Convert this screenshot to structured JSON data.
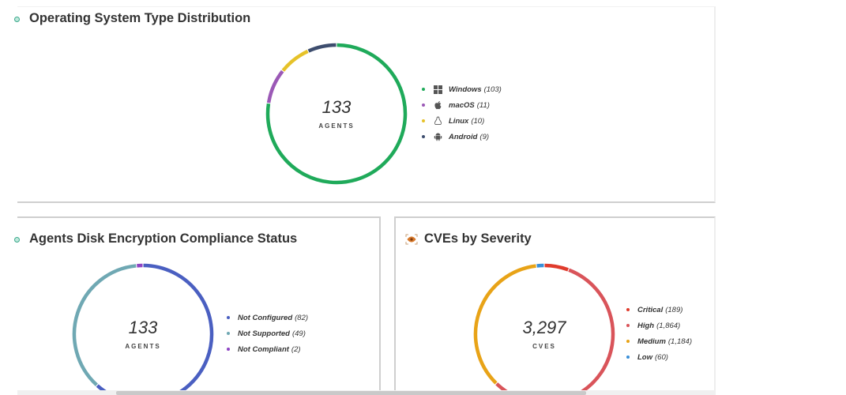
{
  "panels": {
    "os": {
      "title": "Operating System Type Distribution",
      "title_icon": "dot-icon",
      "center_value": "133",
      "center_label": "AGENTS",
      "legend": [
        {
          "label": "Windows",
          "count": "(103)",
          "color": "#1faa5a",
          "icon": "windows-icon"
        },
        {
          "label": "macOS",
          "count": "(11)",
          "color": "#9b59b6",
          "icon": "apple-icon"
        },
        {
          "label": "Linux",
          "count": "(10)",
          "color": "#e6c229",
          "icon": "linux-icon"
        },
        {
          "label": "Android",
          "count": "(9)",
          "color": "#3d4d6e",
          "icon": "android-icon"
        }
      ]
    },
    "disk": {
      "title": "Agents Disk Encryption Compliance Status",
      "title_icon": "dot-icon",
      "center_value": "133",
      "center_label": "AGENTS",
      "legend": [
        {
          "label": "Not Configured",
          "count": "(82)",
          "color": "#4a5fc1"
        },
        {
          "label": "Not Supported",
          "count": "(49)",
          "color": "#6fa8b3"
        },
        {
          "label": "Not Compliant",
          "count": "(2)",
          "color": "#8e44c4"
        }
      ]
    },
    "cve": {
      "title": "CVEs by Severity",
      "title_icon": "eye-scan-icon",
      "center_value": "3,297",
      "center_label": "CVES",
      "legend": [
        {
          "label": "Critical",
          "count": "(189)",
          "color": "#e03b2c"
        },
        {
          "label": "High",
          "count": "(1,864)",
          "color": "#d9545a"
        },
        {
          "label": "Medium",
          "count": "(1,184)",
          "color": "#e8a317"
        },
        {
          "label": "Low",
          "count": "(60)",
          "color": "#3a8fd8"
        }
      ]
    }
  },
  "chart_data": [
    {
      "type": "pie",
      "title": "Operating System Type Distribution",
      "subtitle": "133 AGENTS",
      "categories": [
        "Windows",
        "macOS",
        "Linux",
        "Android"
      ],
      "values": [
        103,
        11,
        10,
        9
      ],
      "colors": [
        "#1faa5a",
        "#9b59b6",
        "#e6c229",
        "#3d4d6e"
      ],
      "total": 133,
      "donut": true,
      "legend_position": "right"
    },
    {
      "type": "pie",
      "title": "Agents Disk Encryption Compliance Status",
      "subtitle": "133 AGENTS",
      "categories": [
        "Not Configured",
        "Not Supported",
        "Not Compliant"
      ],
      "values": [
        82,
        49,
        2
      ],
      "colors": [
        "#4a5fc1",
        "#6fa8b3",
        "#8e44c4"
      ],
      "total": 133,
      "donut": true,
      "legend_position": "right"
    },
    {
      "type": "pie",
      "title": "CVEs by Severity",
      "subtitle": "3,297 CVES",
      "categories": [
        "Critical",
        "High",
        "Medium",
        "Low"
      ],
      "values": [
        189,
        1864,
        1184,
        60
      ],
      "colors": [
        "#e03b2c",
        "#d9545a",
        "#e8a317",
        "#3a8fd8"
      ],
      "total": 3297,
      "donut": true,
      "legend_position": "right"
    }
  ]
}
